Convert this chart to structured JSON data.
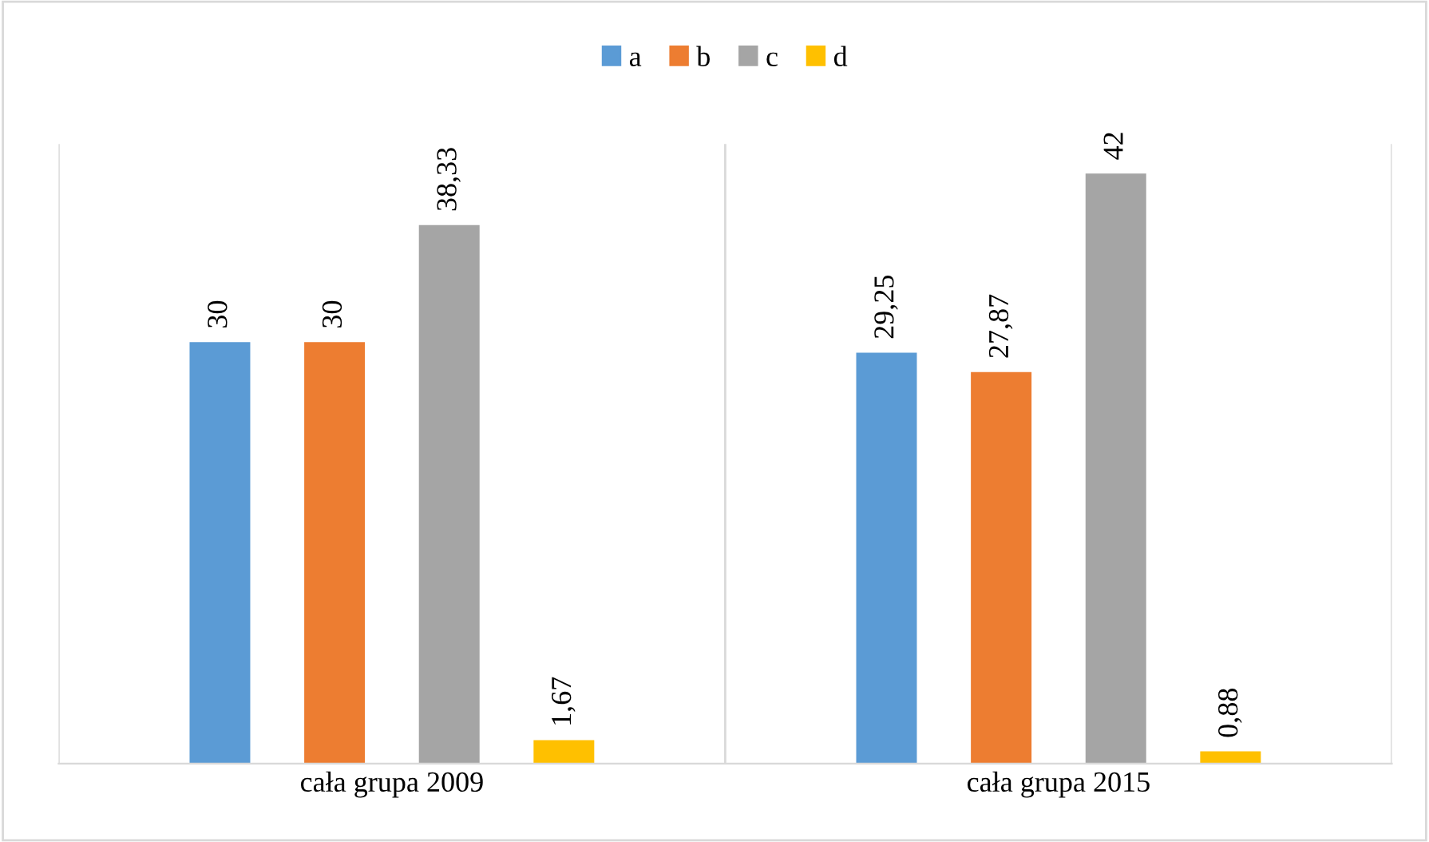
{
  "chart_data": {
    "type": "bar",
    "categories": [
      "cała grupa 2009",
      "cała grupa 2015"
    ],
    "series": [
      {
        "name": "a",
        "color": "#5b9bd5",
        "values": [
          30,
          29.25
        ],
        "value_labels": [
          "30",
          "29,25"
        ]
      },
      {
        "name": "b",
        "color": "#ed7d31",
        "values": [
          30,
          27.87
        ],
        "value_labels": [
          "30",
          "27,87"
        ]
      },
      {
        "name": "c",
        "color": "#a5a5a5",
        "values": [
          38.33,
          42
        ],
        "value_labels": [
          "38,33",
          "42"
        ]
      },
      {
        "name": "d",
        "color": "#ffc000",
        "values": [
          1.67,
          0.88
        ],
        "value_labels": [
          "1,67",
          "0,88"
        ]
      }
    ],
    "legend": "top",
    "grid": "x",
    "tick_labels": "x"
  }
}
